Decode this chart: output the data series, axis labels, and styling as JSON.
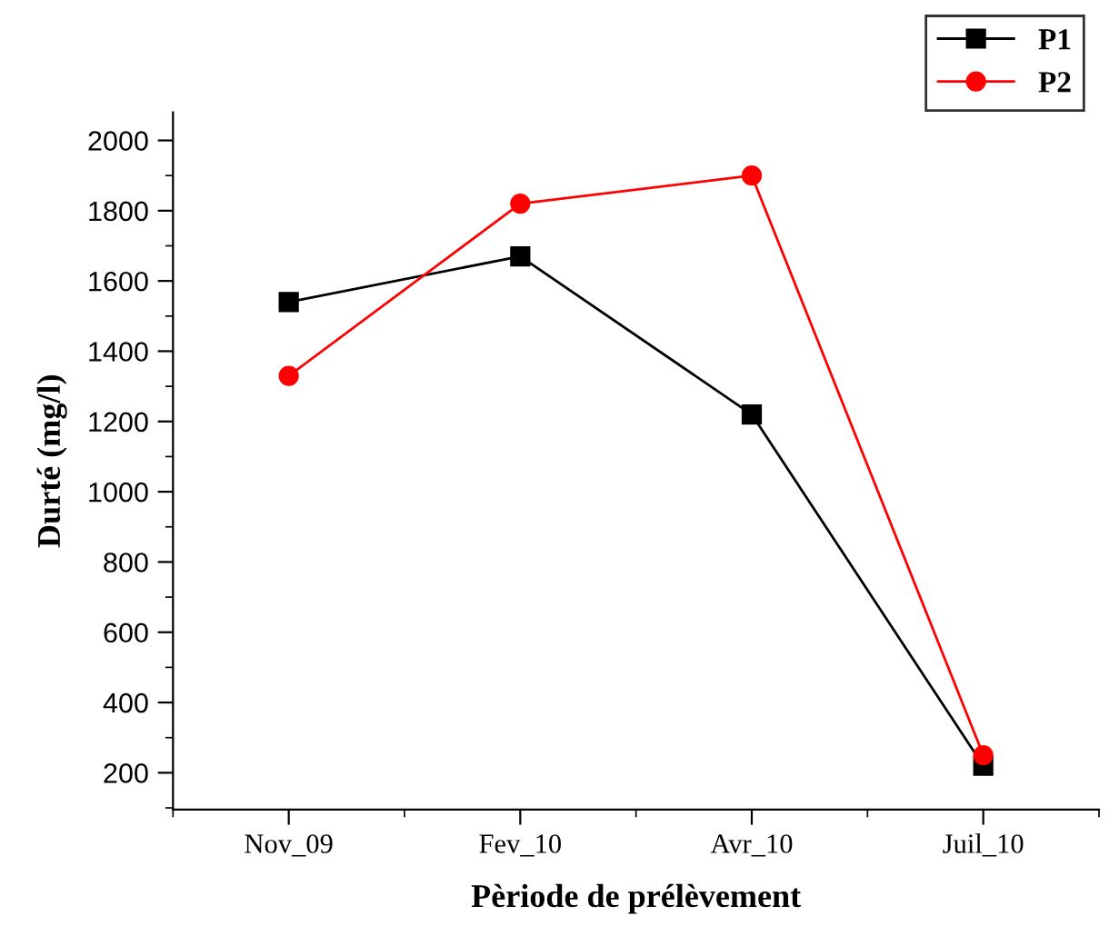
{
  "chart_data": {
    "type": "line",
    "xlabel": "Pèriode de prélèvement",
    "ylabel": "Durté (mg/l)",
    "categories": [
      "Nov_09",
      "Fev_10",
      "Avr_10",
      "Juil_10"
    ],
    "series": [
      {
        "name": "P1",
        "color": "#000000",
        "marker": "square",
        "values": [
          1540,
          1670,
          1220,
          220
        ]
      },
      {
        "name": "P2",
        "color": "#ff0000",
        "marker": "circle",
        "values": [
          1330,
          1820,
          1900,
          250
        ]
      }
    ],
    "ylim": [
      95,
      2080
    ],
    "yticks": [
      200,
      400,
      600,
      800,
      1000,
      1200,
      1400,
      1600,
      1800,
      2000
    ],
    "grid": false,
    "legend": "top right",
    "line_style": "solid"
  }
}
